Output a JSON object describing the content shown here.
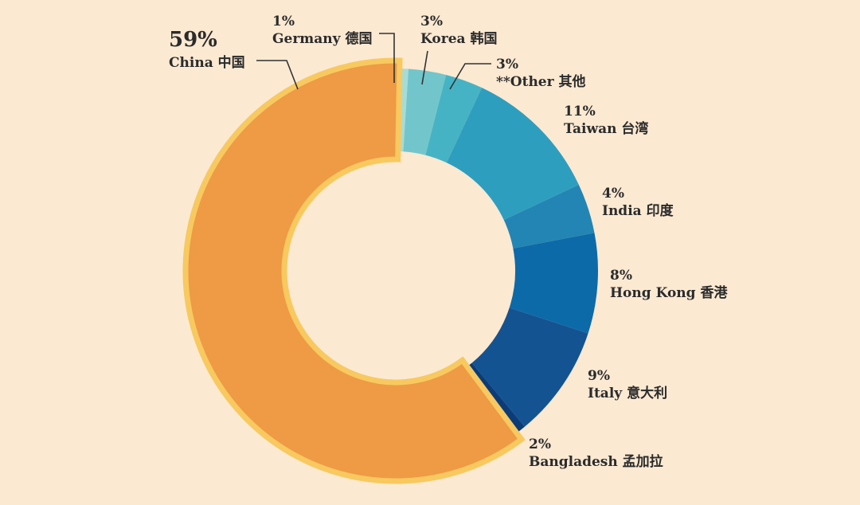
{
  "chart_data": {
    "type": "pie",
    "variant": "donut",
    "slices": [
      {
        "label": "Germany 德国",
        "value": 1,
        "display": "1%",
        "color": "#a6dcd8"
      },
      {
        "label": "Korea 韩国",
        "value": 3,
        "display": "3%",
        "color": "#72c6cb"
      },
      {
        "label": "**Other 其他",
        "value": 3,
        "display": "3%",
        "color": "#46b3c4"
      },
      {
        "label": "Taiwan 台湾",
        "value": 11,
        "display": "11%",
        "color": "#2e9ebf"
      },
      {
        "label": "India 印度",
        "value": 4,
        "display": "4%",
        "color": "#2385b3"
      },
      {
        "label": "Hong Kong 香港",
        "value": 8,
        "display": "8%",
        "color": "#0d6aa8"
      },
      {
        "label": "Italy 意大利",
        "value": 9,
        "display": "9%",
        "color": "#145391"
      },
      {
        "label": "Bangladesh 孟加拉",
        "value": 2,
        "display": "2%",
        "color": "#0c3c78"
      },
      {
        "label": "China 中国",
        "value": 59,
        "display": "59%",
        "color": "#ef9a45",
        "highlight": true,
        "highlight_border": "#f8c95f"
      }
    ]
  }
}
